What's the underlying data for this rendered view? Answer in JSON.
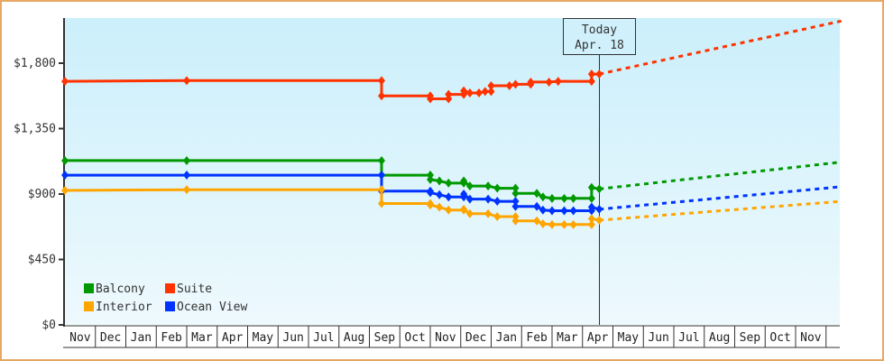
{
  "chart_data": {
    "type": "line",
    "title": "",
    "xlabel": "",
    "ylabel": "",
    "ylim": [
      0,
      2025
    ],
    "y_ticks": [
      {
        "value": 0,
        "label": "$0"
      },
      {
        "value": 450,
        "label": "$450"
      },
      {
        "value": 900,
        "label": "$900"
      },
      {
        "value": 1350,
        "label": "$1,350"
      },
      {
        "value": 1800,
        "label": "$1,800"
      }
    ],
    "x_months": [
      "Nov",
      "Dec",
      "Jan",
      "Feb",
      "Mar",
      "Apr",
      "May",
      "Jun",
      "Jul",
      "Aug",
      "Sep",
      "Oct",
      "Nov",
      "Dec",
      "Jan",
      "Feb",
      "Mar",
      "Apr",
      "May",
      "Jun",
      "Jul",
      "Aug",
      "Sep",
      "Oct",
      "Nov"
    ],
    "today_marker": {
      "line1": "Today",
      "line2": "Apr. 18",
      "month_index": 17.55
    },
    "grid": false,
    "legend_position": "lower-left",
    "legend": [
      {
        "name": "Balcony",
        "color": "#009900"
      },
      {
        "name": "Suite",
        "color": "#ff3300"
      },
      {
        "name": "Interior",
        "color": "#ffa500"
      },
      {
        "name": "Ocean View",
        "color": "#0033ff"
      }
    ],
    "series": [
      {
        "name": "Suite",
        "color": "#ff3300",
        "step": true,
        "points": [
          [
            0,
            1675
          ],
          [
            4,
            1680
          ],
          [
            10.4,
            1680
          ],
          [
            10.4,
            1575
          ],
          [
            12.0,
            1575
          ],
          [
            12.0,
            1555
          ],
          [
            12.6,
            1555
          ],
          [
            12.6,
            1585
          ],
          [
            13.1,
            1585
          ],
          [
            13.1,
            1610
          ],
          [
            13.3,
            1595
          ],
          [
            13.6,
            1595
          ],
          [
            13.8,
            1605
          ],
          [
            14.0,
            1605
          ],
          [
            14.0,
            1645
          ],
          [
            14.6,
            1645
          ],
          [
            14.8,
            1655
          ],
          [
            15.3,
            1655
          ],
          [
            15.3,
            1670
          ],
          [
            15.9,
            1670
          ],
          [
            16.2,
            1675
          ],
          [
            17.3,
            1675
          ],
          [
            17.3,
            1725
          ],
          [
            17.55,
            1725
          ]
        ],
        "forecast": [
          [
            17.55,
            1725
          ],
          [
            25.5,
            2090
          ]
        ]
      },
      {
        "name": "Balcony",
        "color": "#009900",
        "step": true,
        "points": [
          [
            0,
            1130
          ],
          [
            4,
            1130
          ],
          [
            10.4,
            1130
          ],
          [
            10.4,
            1030
          ],
          [
            12.0,
            1030
          ],
          [
            12.0,
            1000
          ],
          [
            12.3,
            990
          ],
          [
            12.6,
            975
          ],
          [
            13.1,
            975
          ],
          [
            13.1,
            990
          ],
          [
            13.3,
            955
          ],
          [
            13.9,
            955
          ],
          [
            14.2,
            940
          ],
          [
            14.8,
            940
          ],
          [
            14.8,
            905
          ],
          [
            15.5,
            905
          ],
          [
            15.7,
            880
          ],
          [
            16.0,
            870
          ],
          [
            16.4,
            870
          ],
          [
            16.7,
            870
          ],
          [
            17.3,
            870
          ],
          [
            17.3,
            945
          ],
          [
            17.55,
            935
          ]
        ],
        "forecast": [
          [
            17.55,
            935
          ],
          [
            25.5,
            1120
          ]
        ]
      },
      {
        "name": "Ocean View",
        "color": "#0033ff",
        "step": true,
        "points": [
          [
            0,
            1030
          ],
          [
            4,
            1030
          ],
          [
            10.4,
            1030
          ],
          [
            10.4,
            920
          ],
          [
            12.0,
            920
          ],
          [
            12.0,
            910
          ],
          [
            12.3,
            895
          ],
          [
            12.6,
            880
          ],
          [
            13.1,
            880
          ],
          [
            13.1,
            900
          ],
          [
            13.3,
            865
          ],
          [
            13.9,
            865
          ],
          [
            14.2,
            850
          ],
          [
            14.8,
            850
          ],
          [
            14.8,
            815
          ],
          [
            15.5,
            815
          ],
          [
            15.7,
            790
          ],
          [
            16.0,
            785
          ],
          [
            16.4,
            785
          ],
          [
            16.7,
            785
          ],
          [
            17.3,
            785
          ],
          [
            17.3,
            810
          ],
          [
            17.55,
            795
          ]
        ],
        "forecast": [
          [
            17.55,
            795
          ],
          [
            25.5,
            950
          ]
        ]
      },
      {
        "name": "Interior",
        "color": "#ffa500",
        "step": true,
        "points": [
          [
            0,
            925
          ],
          [
            4,
            930
          ],
          [
            10.4,
            930
          ],
          [
            10.4,
            835
          ],
          [
            12.0,
            835
          ],
          [
            12.0,
            825
          ],
          [
            12.3,
            810
          ],
          [
            12.6,
            790
          ],
          [
            13.1,
            790
          ],
          [
            13.1,
            795
          ],
          [
            13.3,
            765
          ],
          [
            13.9,
            765
          ],
          [
            14.2,
            745
          ],
          [
            14.8,
            745
          ],
          [
            14.8,
            715
          ],
          [
            15.5,
            715
          ],
          [
            15.7,
            695
          ],
          [
            16.0,
            690
          ],
          [
            16.4,
            690
          ],
          [
            16.7,
            690
          ],
          [
            17.3,
            690
          ],
          [
            17.3,
            730
          ],
          [
            17.55,
            720
          ]
        ],
        "forecast": [
          [
            17.55,
            720
          ],
          [
            25.5,
            850
          ]
        ]
      }
    ]
  },
  "legend_items": [
    {
      "label": "Balcony"
    },
    {
      "label": "Suite"
    },
    {
      "label": "Interior"
    },
    {
      "label": "Ocean View"
    }
  ]
}
